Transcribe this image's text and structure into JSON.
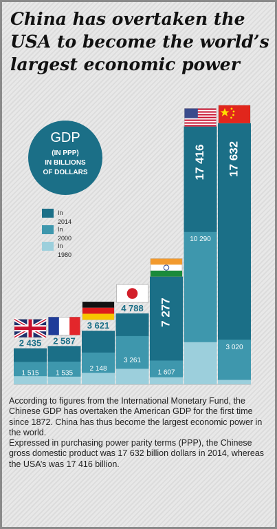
{
  "title": {
    "line1": "China has overtaken the",
    "line2": "USA to become the world’s",
    "line3": "largest economic power"
  },
  "gdp_badge": {
    "main": "GDP",
    "line1": "(IN PPP)",
    "line2": "IN BILLIONS",
    "line3": "OF DOLLARS"
  },
  "legend": [
    {
      "label": "In 2014",
      "color": "#1b6f87"
    },
    {
      "label": "In 2000",
      "color": "#3e97ad"
    },
    {
      "label": "In 1980",
      "color": "#9ccfdc"
    }
  ],
  "chart_data": {
    "type": "bar",
    "title": "China has overtaken the USA to become the world’s largest economic power",
    "ylabel": "GDP (IN PPP) IN BILLIONS OF DOLLARS",
    "legend_position": "left",
    "categories": [
      "United Kingdom",
      "France",
      "Germany",
      "Japan",
      "India",
      "USA",
      "China"
    ],
    "flag_icons": [
      "uk-flag-icon",
      "france-flag-icon",
      "germany-flag-icon",
      "japan-flag-icon",
      "india-flag-icon",
      "usa-flag-icon",
      "china-flag-icon"
    ],
    "series": [
      {
        "name": "In 2014",
        "values": [
          2435,
          2587,
          3621,
          4788,
          7277,
          17416,
          17632
        ],
        "labels": [
          "2 435",
          "2 587",
          "3 621",
          "4 788",
          "7 277",
          "17 416",
          "17 632"
        ]
      },
      {
        "name": "In 2000",
        "values": [
          1515,
          1535,
          2148,
          3261,
          1607,
          10290,
          3020
        ],
        "labels": [
          "1 515",
          "1 535",
          "2 148",
          "3 261",
          "1 607",
          "10 290",
          "3 020"
        ]
      },
      {
        "name": "In 1980",
        "values": [
          550,
          520,
          780,
          1050,
          480,
          2850,
          300
        ]
      }
    ],
    "colors": {
      "2014": "#1b6f87",
      "2000": "#3e97ad",
      "1980": "#9ccfdc"
    }
  },
  "body_text": {
    "paragraph1": "According to figures from the International Monetary Fund, the Chinese GDP has overtaken the American GDP for the first time since 1872. China has thus become the largest economic power in the world.",
    "paragraph2": "Expressed in purchasing power parity terms (PPP), the Chinese gross domestic product was 17 632 billion dollars in 2014, whereas the USA’s was 17 416 billion."
  }
}
